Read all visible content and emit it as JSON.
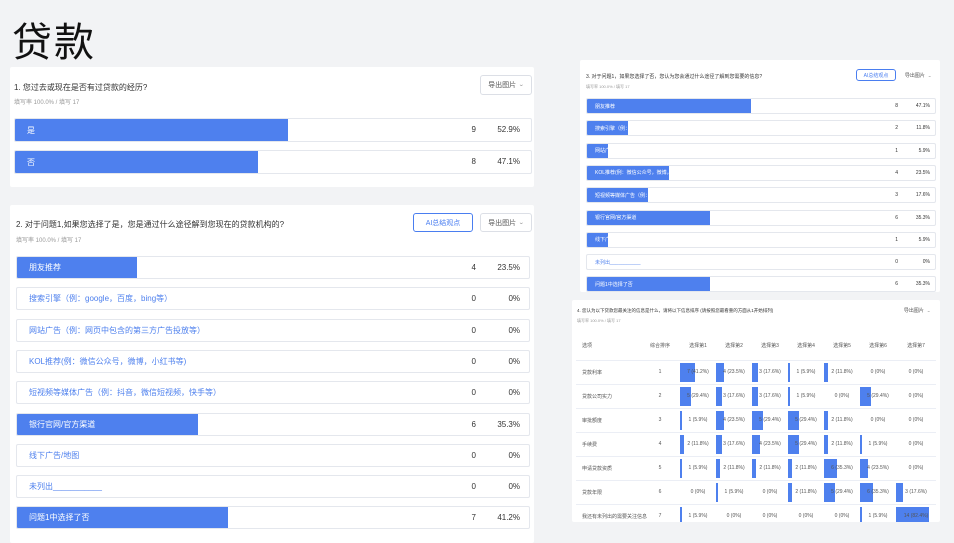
{
  "page": {
    "title": "贷款"
  },
  "q1": {
    "title": "1. 您过去或现在是否有过贷款的经历?",
    "meta": "填写率 100.0% / 填写 17",
    "export_label": "导出图片",
    "options": [
      {
        "label": "是",
        "count": "9",
        "percent": "52.9%",
        "ratio": 0.529
      },
      {
        "label": "否",
        "count": "8",
        "percent": "47.1%",
        "ratio": 0.471
      }
    ]
  },
  "q2": {
    "title": "2. 对于问题1,如果您选择了是，您是通过什么途径解到您现在的贷款机构的?",
    "meta": "填写率 100.0% / 填写 17",
    "ai_label": "AI总结观点",
    "export_label": "导出图片",
    "options": [
      {
        "label": "朋友推荐",
        "count": "4",
        "percent": "23.5%",
        "ratio": 0.235
      },
      {
        "label": "搜索引擎（例：google，百度，bing等）",
        "count": "0",
        "percent": "0%",
        "ratio": 0
      },
      {
        "label": "网站广告（例：网页中包含的第三方广告投放等）",
        "count": "0",
        "percent": "0%",
        "ratio": 0
      },
      {
        "label": "KOL推荐(例：微信公众号，微博，小红书等)",
        "count": "0",
        "percent": "0%",
        "ratio": 0
      },
      {
        "label": "短视频等媒体广告（例：抖音，微信短视频，快手等）",
        "count": "0",
        "percent": "0%",
        "ratio": 0
      },
      {
        "label": "银行官网/官方渠道",
        "count": "6",
        "percent": "35.3%",
        "ratio": 0.353
      },
      {
        "label": "线下广告/地图",
        "count": "0",
        "percent": "0%",
        "ratio": 0
      },
      {
        "label": "未列出___________",
        "count": "0",
        "percent": "0%",
        "ratio": 0
      },
      {
        "label": "问题1中选择了否",
        "count": "7",
        "percent": "41.2%",
        "ratio": 0.412
      }
    ]
  },
  "q3": {
    "title": "3. 对于问题1，如果您选择了否，您认为您会通过什么途径了解到您需要的信息?",
    "meta": "填写率 100.0% / 填写 17",
    "ai_label": "AI总结观点",
    "export_label": "导出图片",
    "options": [
      {
        "label": "朋友推荐",
        "count": "8",
        "percent": "47.1%",
        "ratio": 0.471
      },
      {
        "label": "搜索引擎（例：google，百度，bing等）",
        "count": "2",
        "percent": "11.8%",
        "ratio": 0.118
      },
      {
        "label": "网站广告（例：网页中包含的第三方广告投放等）",
        "count": "1",
        "percent": "5.9%",
        "ratio": 0.059
      },
      {
        "label": "KOL推荐(例：微信公众号，微博，小红书等)",
        "count": "4",
        "percent": "23.5%",
        "ratio": 0.235
      },
      {
        "label": "短视频等媒体广告（例：抖音，微信短视频，快手等）",
        "count": "3",
        "percent": "17.6%",
        "ratio": 0.176
      },
      {
        "label": "银行官网/官方渠道",
        "count": "6",
        "percent": "35.3%",
        "ratio": 0.353
      },
      {
        "label": "线下广告/地图",
        "count": "1",
        "percent": "5.9%",
        "ratio": 0.059
      },
      {
        "label": "未列出___________",
        "count": "0",
        "percent": "0%",
        "ratio": 0
      },
      {
        "label": "问题1中选择了否",
        "count": "6",
        "percent": "35.3%",
        "ratio": 0.353
      }
    ]
  },
  "q4": {
    "title": "4. 您认为以下贷款您最关注的信息是什么，请将以下信息排序 (请按照您最看重的方面从1开始排列)",
    "meta": "填写率 100.0% / 填写 17",
    "export_label": "导出图片",
    "headers": [
      "选项",
      "综合排序",
      "选择第1",
      "选择第2",
      "选择第3",
      "选择第4",
      "选择第5",
      "选择第6",
      "选择第7"
    ],
    "rows": [
      {
        "label": "贷款利率",
        "rank": "1",
        "cells": [
          {
            "text": "7 (41.2%)",
            "ratio": 0.412
          },
          {
            "text": "4 (23.5%)",
            "ratio": 0.235
          },
          {
            "text": "3 (17.6%)",
            "ratio": 0.176
          },
          {
            "text": "1 (5.9%)",
            "ratio": 0.059
          },
          {
            "text": "2 (11.8%)",
            "ratio": 0.118
          },
          {
            "text": "0 (0%)",
            "ratio": 0
          },
          {
            "text": "0 (0%)",
            "ratio": 0
          }
        ]
      },
      {
        "label": "贷款公司实力",
        "rank": "2",
        "cells": [
          {
            "text": "5 (29.4%)",
            "ratio": 0.294
          },
          {
            "text": "3 (17.6%)",
            "ratio": 0.176
          },
          {
            "text": "3 (17.6%)",
            "ratio": 0.176
          },
          {
            "text": "1 (5.9%)",
            "ratio": 0.059
          },
          {
            "text": "0 (0%)",
            "ratio": 0
          },
          {
            "text": "5 (29.4%)",
            "ratio": 0.294
          },
          {
            "text": "0 (0%)",
            "ratio": 0
          }
        ]
      },
      {
        "label": "审批额度",
        "rank": "3",
        "cells": [
          {
            "text": "1 (5.9%)",
            "ratio": 0.059
          },
          {
            "text": "4 (23.5%)",
            "ratio": 0.235
          },
          {
            "text": "5 (29.4%)",
            "ratio": 0.294
          },
          {
            "text": "5 (29.4%)",
            "ratio": 0.294
          },
          {
            "text": "2 (11.8%)",
            "ratio": 0.118
          },
          {
            "text": "0 (0%)",
            "ratio": 0
          },
          {
            "text": "0 (0%)",
            "ratio": 0
          }
        ]
      },
      {
        "label": "手续费",
        "rank": "4",
        "cells": [
          {
            "text": "2 (11.8%)",
            "ratio": 0.118
          },
          {
            "text": "3 (17.6%)",
            "ratio": 0.176
          },
          {
            "text": "4 (23.5%)",
            "ratio": 0.235
          },
          {
            "text": "5 (29.4%)",
            "ratio": 0.294
          },
          {
            "text": "2 (11.8%)",
            "ratio": 0.118
          },
          {
            "text": "1 (5.9%)",
            "ratio": 0.059
          },
          {
            "text": "0 (0%)",
            "ratio": 0
          }
        ]
      },
      {
        "label": "申请贷款资质",
        "rank": "5",
        "cells": [
          {
            "text": "1 (5.9%)",
            "ratio": 0.059
          },
          {
            "text": "2 (11.8%)",
            "ratio": 0.118
          },
          {
            "text": "2 (11.8%)",
            "ratio": 0.118
          },
          {
            "text": "2 (11.8%)",
            "ratio": 0.118
          },
          {
            "text": "6 (35.3%)",
            "ratio": 0.353
          },
          {
            "text": "4 (23.5%)",
            "ratio": 0.235
          },
          {
            "text": "0 (0%)",
            "ratio": 0
          }
        ]
      },
      {
        "label": "贷款年限",
        "rank": "6",
        "cells": [
          {
            "text": "0 (0%)",
            "ratio": 0
          },
          {
            "text": "1 (5.9%)",
            "ratio": 0.059
          },
          {
            "text": "0 (0%)",
            "ratio": 0
          },
          {
            "text": "2 (11.8%)",
            "ratio": 0.118
          },
          {
            "text": "5 (29.4%)",
            "ratio": 0.294
          },
          {
            "text": "6 (35.3%)",
            "ratio": 0.353
          },
          {
            "text": "3 (17.6%)",
            "ratio": 0.176
          }
        ]
      },
      {
        "label": "我还有未列出的需要关注信息",
        "rank": "7",
        "cells": [
          {
            "text": "1 (5.9%)",
            "ratio": 0.059
          },
          {
            "text": "0 (0%)",
            "ratio": 0
          },
          {
            "text": "0 (0%)",
            "ratio": 0
          },
          {
            "text": "0 (0%)",
            "ratio": 0
          },
          {
            "text": "0 (0%)",
            "ratio": 0
          },
          {
            "text": "1 (5.9%)",
            "ratio": 0.059
          },
          {
            "text": "14 (82.4%)",
            "ratio": 0.824
          }
        ]
      }
    ]
  }
}
